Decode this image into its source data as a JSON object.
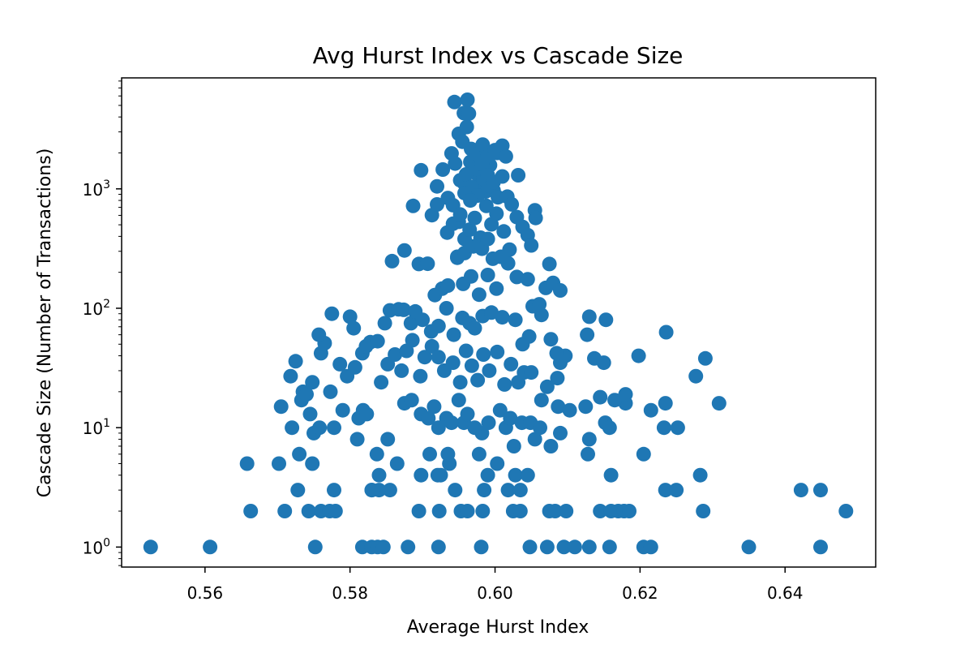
{
  "chart_data": {
    "type": "scatter",
    "title": "Avg Hurst Index vs Cascade Size",
    "xlabel": "Average Hurst Index",
    "ylabel": "Cascade Size (Number of Transactions)",
    "xlim": [
      0.5485,
      0.6525
    ],
    "ylim": [
      0.68,
      8500
    ],
    "yscale": "log",
    "x_ticks": [
      0.56,
      0.58,
      0.6,
      0.62,
      0.64
    ],
    "x_tick_labels": [
      "0.56",
      "0.58",
      "0.60",
      "0.62",
      "0.64"
    ],
    "y_ticks": [
      {
        "value": 1,
        "base": "10",
        "exp": "0"
      },
      {
        "value": 10,
        "base": "10",
        "exp": "1"
      },
      {
        "value": 100,
        "base": "10",
        "exp": "2"
      },
      {
        "value": 1000,
        "base": "10",
        "exp": "3"
      }
    ],
    "grid": false,
    "marker_color": "#1f77b4",
    "points": [
      [
        0.5525,
        1
      ],
      [
        0.5607,
        1
      ],
      [
        0.5752,
        1
      ],
      [
        0.5817,
        1
      ],
      [
        0.583,
        1
      ],
      [
        0.5838,
        1
      ],
      [
        0.5846,
        1
      ],
      [
        0.588,
        1
      ],
      [
        0.5922,
        1
      ],
      [
        0.5981,
        1
      ],
      [
        0.6048,
        1
      ],
      [
        0.6072,
        1
      ],
      [
        0.6095,
        1
      ],
      [
        0.611,
        1
      ],
      [
        0.613,
        1
      ],
      [
        0.6158,
        1
      ],
      [
        0.6205,
        1
      ],
      [
        0.6215,
        1
      ],
      [
        0.635,
        1
      ],
      [
        0.6449,
        1
      ],
      [
        0.5663,
        2
      ],
      [
        0.571,
        2
      ],
      [
        0.5743,
        2
      ],
      [
        0.576,
        2
      ],
      [
        0.5772,
        2
      ],
      [
        0.578,
        2
      ],
      [
        0.5895,
        2
      ],
      [
        0.5923,
        2
      ],
      [
        0.5953,
        2
      ],
      [
        0.5962,
        2
      ],
      [
        0.5983,
        2
      ],
      [
        0.6025,
        2
      ],
      [
        0.6035,
        2
      ],
      [
        0.6075,
        2
      ],
      [
        0.6083,
        2
      ],
      [
        0.6098,
        2
      ],
      [
        0.6145,
        2
      ],
      [
        0.616,
        2
      ],
      [
        0.617,
        2
      ],
      [
        0.6178,
        2
      ],
      [
        0.6185,
        2
      ],
      [
        0.6287,
        2
      ],
      [
        0.6484,
        2
      ],
      [
        0.5728,
        3
      ],
      [
        0.5778,
        3
      ],
      [
        0.583,
        3
      ],
      [
        0.584,
        3
      ],
      [
        0.5855,
        3
      ],
      [
        0.5945,
        3
      ],
      [
        0.5985,
        3
      ],
      [
        0.6018,
        3
      ],
      [
        0.6035,
        3
      ],
      [
        0.6235,
        3
      ],
      [
        0.625,
        3
      ],
      [
        0.6422,
        3
      ],
      [
        0.6449,
        3
      ],
      [
        0.573,
        6
      ],
      [
        0.5778,
        10
      ],
      [
        0.581,
        8
      ],
      [
        0.583,
        3
      ],
      [
        0.584,
        4
      ],
      [
        0.5865,
        5
      ],
      [
        0.5898,
        4
      ],
      [
        0.5925,
        4
      ],
      [
        0.5937,
        5
      ],
      [
        0.5957,
        11
      ],
      [
        0.599,
        4
      ],
      [
        0.6015,
        10
      ],
      [
        0.6028,
        4
      ],
      [
        0.6045,
        4
      ],
      [
        0.616,
        4
      ],
      [
        0.6283,
        4
      ],
      [
        0.5658,
        5
      ],
      [
        0.5702,
        5
      ],
      [
        0.5748,
        5
      ],
      [
        0.5818,
        14
      ],
      [
        0.5837,
        6
      ],
      [
        0.591,
        6
      ],
      [
        0.5921,
        4
      ],
      [
        0.5935,
        6
      ],
      [
        0.5978,
        6
      ],
      [
        0.5982,
        9
      ],
      [
        0.6003,
        5
      ],
      [
        0.6026,
        7
      ],
      [
        0.6128,
        6
      ],
      [
        0.6205,
        6
      ],
      [
        0.6077,
        7
      ],
      [
        0.6055,
        8
      ],
      [
        0.613,
        8
      ],
      [
        0.609,
        9
      ],
      [
        0.5705,
        15
      ],
      [
        0.572,
        10
      ],
      [
        0.5735,
        20
      ],
      [
        0.5745,
        13
      ],
      [
        0.575,
        9
      ],
      [
        0.5758,
        10
      ],
      [
        0.579,
        14
      ],
      [
        0.5812,
        12
      ],
      [
        0.5823,
        13
      ],
      [
        0.5852,
        8
      ],
      [
        0.5875,
        16
      ],
      [
        0.5885,
        17
      ],
      [
        0.5898,
        13
      ],
      [
        0.5908,
        12
      ],
      [
        0.5916,
        15
      ],
      [
        0.5922,
        10
      ],
      [
        0.5933,
        12
      ],
      [
        0.594,
        11
      ],
      [
        0.595,
        17
      ],
      [
        0.5962,
        13
      ],
      [
        0.5972,
        10
      ],
      [
        0.5991,
        11
      ],
      [
        0.6007,
        14
      ],
      [
        0.6021,
        12
      ],
      [
        0.6037,
        11
      ],
      [
        0.6049,
        11
      ],
      [
        0.6062,
        10
      ],
      [
        0.6087,
        15
      ],
      [
        0.6103,
        14
      ],
      [
        0.6125,
        15
      ],
      [
        0.6152,
        11
      ],
      [
        0.6158,
        10
      ],
      [
        0.618,
        16
      ],
      [
        0.6215,
        14
      ],
      [
        0.6233,
        10
      ],
      [
        0.6252,
        10
      ],
      [
        0.6235,
        16
      ],
      [
        0.6309,
        16
      ],
      [
        0.5718,
        27
      ],
      [
        0.5725,
        36
      ],
      [
        0.5733,
        17
      ],
      [
        0.574,
        19
      ],
      [
        0.5748,
        24
      ],
      [
        0.576,
        42
      ],
      [
        0.5765,
        51
      ],
      [
        0.5773,
        20
      ],
      [
        0.5786,
        34
      ],
      [
        0.5796,
        27
      ],
      [
        0.5807,
        32
      ],
      [
        0.5817,
        42
      ],
      [
        0.5828,
        52
      ],
      [
        0.5843,
        24
      ],
      [
        0.5852,
        34
      ],
      [
        0.5862,
        41
      ],
      [
        0.5871,
        30
      ],
      [
        0.5878,
        44
      ],
      [
        0.5886,
        54
      ],
      [
        0.5897,
        27
      ],
      [
        0.5903,
        39
      ],
      [
        0.5913,
        48
      ],
      [
        0.5922,
        39
      ],
      [
        0.593,
        30
      ],
      [
        0.5942,
        35
      ],
      [
        0.5952,
        24
      ],
      [
        0.596,
        44
      ],
      [
        0.5968,
        33
      ],
      [
        0.5976,
        25
      ],
      [
        0.5984,
        41
      ],
      [
        0.5992,
        30
      ],
      [
        0.6003,
        43
      ],
      [
        0.6013,
        23
      ],
      [
        0.6022,
        34
      ],
      [
        0.6032,
        24
      ],
      [
        0.604,
        29
      ],
      [
        0.605,
        29
      ],
      [
        0.6064,
        17
      ],
      [
        0.6072,
        22
      ],
      [
        0.6086,
        26
      ],
      [
        0.609,
        35
      ],
      [
        0.6097,
        40
      ],
      [
        0.6137,
        38
      ],
      [
        0.6145,
        18
      ],
      [
        0.615,
        35
      ],
      [
        0.6165,
        17
      ],
      [
        0.618,
        19
      ],
      [
        0.6198,
        40
      ],
      [
        0.6277,
        27
      ],
      [
        0.629,
        38
      ],
      [
        0.5757,
        60
      ],
      [
        0.5775,
        90
      ],
      [
        0.58,
        85
      ],
      [
        0.5805,
        68
      ],
      [
        0.5822,
        48
      ],
      [
        0.5838,
        53
      ],
      [
        0.5848,
        75
      ],
      [
        0.5855,
        96
      ],
      [
        0.5867,
        98
      ],
      [
        0.5874,
        97
      ],
      [
        0.5884,
        75
      ],
      [
        0.589,
        94
      ],
      [
        0.59,
        80
      ],
      [
        0.5912,
        64
      ],
      [
        0.5922,
        71
      ],
      [
        0.5933,
        100
      ],
      [
        0.5943,
        60
      ],
      [
        0.5955,
        83
      ],
      [
        0.5965,
        75
      ],
      [
        0.5972,
        68
      ],
      [
        0.5983,
        86
      ],
      [
        0.5995,
        92
      ],
      [
        0.601,
        84
      ],
      [
        0.6028,
        80
      ],
      [
        0.6038,
        50
      ],
      [
        0.6047,
        58
      ],
      [
        0.6052,
        104
      ],
      [
        0.6064,
        88
      ],
      [
        0.6077,
        55
      ],
      [
        0.6085,
        42
      ],
      [
        0.6127,
        60
      ],
      [
        0.613,
        85
      ],
      [
        0.6153,
        80
      ],
      [
        0.6236,
        63
      ],
      [
        0.5858,
        248
      ],
      [
        0.5875,
        305
      ],
      [
        0.5895,
        235
      ],
      [
        0.5907,
        236
      ],
      [
        0.5917,
        129
      ],
      [
        0.5927,
        146
      ],
      [
        0.5935,
        155
      ],
      [
        0.5948,
        270
      ],
      [
        0.5956,
        160
      ],
      [
        0.5967,
        185
      ],
      [
        0.5978,
        130
      ],
      [
        0.599,
        190
      ],
      [
        0.6002,
        146
      ],
      [
        0.6018,
        238
      ],
      [
        0.603,
        183
      ],
      [
        0.6045,
        175
      ],
      [
        0.6061,
        108
      ],
      [
        0.607,
        148
      ],
      [
        0.608,
        163
      ],
      [
        0.609,
        141
      ],
      [
        0.6075,
        235
      ],
      [
        0.5887,
        720
      ],
      [
        0.5898,
        1430
      ],
      [
        0.5913,
        602
      ],
      [
        0.592,
        1050
      ],
      [
        0.5928,
        1450
      ],
      [
        0.5935,
        838
      ],
      [
        0.5942,
        730
      ],
      [
        0.595,
        530
      ],
      [
        0.5958,
        1100
      ],
      [
        0.5966,
        1680
      ],
      [
        0.5973,
        1360
      ],
      [
        0.598,
        1150
      ],
      [
        0.5987,
        950
      ],
      [
        0.5993,
        1580
      ],
      [
        0.5998,
        970
      ],
      [
        0.6004,
        850
      ],
      [
        0.601,
        1270
      ],
      [
        0.6017,
        860
      ],
      [
        0.6023,
        742
      ],
      [
        0.603,
        580
      ],
      [
        0.6038,
        480
      ],
      [
        0.6045,
        410
      ],
      [
        0.605,
        336
      ],
      [
        0.6055,
        662
      ],
      [
        0.6056,
        570
      ],
      [
        0.6032,
        1300
      ],
      [
        0.6003,
        2000
      ],
      [
        0.5944,
        5330
      ],
      [
        0.5957,
        4310
      ],
      [
        0.5962,
        5570
      ],
      [
        0.5964,
        4270
      ],
      [
        0.595,
        2890
      ],
      [
        0.5955,
        2480
      ],
      [
        0.5961,
        3300
      ],
      [
        0.5967,
        2160
      ],
      [
        0.5975,
        1960
      ],
      [
        0.5983,
        2350
      ],
      [
        0.599,
        1880
      ],
      [
        0.6,
        2110
      ],
      [
        0.601,
        2300
      ],
      [
        0.6015,
        1870
      ],
      [
        0.594,
        1980
      ],
      [
        0.5945,
        1630
      ],
      [
        0.592,
        740
      ],
      [
        0.5934,
        430
      ],
      [
        0.5942,
        510
      ],
      [
        0.5952,
        610
      ],
      [
        0.5958,
        380
      ],
      [
        0.5965,
        455
      ],
      [
        0.5972,
        570
      ],
      [
        0.598,
        390
      ],
      [
        0.5988,
        720
      ],
      [
        0.5995,
        505
      ],
      [
        0.6002,
        620
      ],
      [
        0.6012,
        440
      ],
      [
        0.602,
        310
      ],
      [
        0.5948,
        265
      ],
      [
        0.5958,
        290
      ],
      [
        0.597,
        330
      ],
      [
        0.5982,
        315
      ],
      [
        0.599,
        380
      ],
      [
        0.5997,
        260
      ],
      [
        0.6008,
        270
      ],
      [
        0.5952,
        1180
      ],
      [
        0.596,
        1320
      ],
      [
        0.5968,
        1040
      ],
      [
        0.5976,
        880
      ],
      [
        0.5984,
        1210
      ],
      [
        0.5992,
        1060
      ],
      [
        0.5958,
        920
      ],
      [
        0.5966,
        800
      ],
      [
        0.5974,
        1470
      ],
      [
        0.5982,
        1620
      ],
      [
        0.599,
        1300
      ],
      [
        0.5998,
        1140
      ]
    ]
  }
}
